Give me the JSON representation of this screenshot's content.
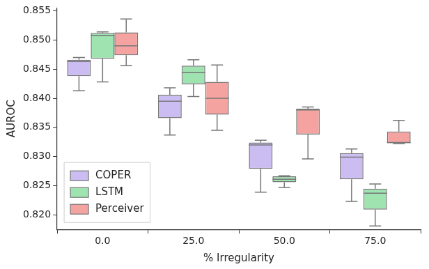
{
  "chart_data": {
    "type": "box",
    "x_label": "% Irregularity",
    "y_label": "AUROC",
    "categories": [
      "0.0",
      "25.0",
      "50.0",
      "75.0"
    ],
    "ylim": [
      0.8175,
      0.8555
    ],
    "yticks": [
      {
        "value": 0.82,
        "label": "0.820"
      },
      {
        "value": 0.825,
        "label": "0.825"
      },
      {
        "value": 0.83,
        "label": "0.830"
      },
      {
        "value": 0.835,
        "label": "0.835"
      },
      {
        "value": 0.84,
        "label": "0.840"
      },
      {
        "value": 0.845,
        "label": "0.845"
      },
      {
        "value": 0.85,
        "label": "0.850"
      },
      {
        "value": 0.855,
        "label": "0.855"
      }
    ],
    "grid": false,
    "legend": "lower left",
    "series": [
      {
        "name": "COPER",
        "color": "#cbbdf2",
        "min": [
          0.8413,
          0.8337,
          0.8239,
          0.8223
        ],
        "q1": [
          0.8438,
          0.8366,
          0.8279,
          0.8261
        ],
        "median": [
          0.8463,
          0.8395,
          0.832,
          0.8299
        ],
        "q3": [
          0.8466,
          0.8406,
          0.8324,
          0.8306
        ],
        "max": [
          0.847,
          0.8418,
          0.8328,
          0.8313
        ]
      },
      {
        "name": "LSTM",
        "color": "#9ee3b0",
        "min": [
          0.8428,
          0.8403,
          0.8247,
          0.8181
        ],
        "q1": [
          0.8468,
          0.8424,
          0.8256,
          0.8209
        ],
        "median": [
          0.8508,
          0.8444,
          0.8261,
          0.8237
        ],
        "q3": [
          0.8512,
          0.8456,
          0.8266,
          0.8245
        ],
        "max": [
          0.8514,
          0.8466,
          0.8267,
          0.8253
        ]
      },
      {
        "name": "Perceiver",
        "color": "#f5a3a0",
        "min": [
          0.8456,
          0.8345,
          0.8296,
          0.8322
        ],
        "q1": [
          0.8474,
          0.8372,
          0.8338,
          0.8323
        ],
        "median": [
          0.849,
          0.84,
          0.838,
          0.8324
        ],
        "q3": [
          0.8513,
          0.8428,
          0.8382,
          0.8343
        ],
        "max": [
          0.8536,
          0.8457,
          0.8385,
          0.8362
        ]
      }
    ]
  }
}
